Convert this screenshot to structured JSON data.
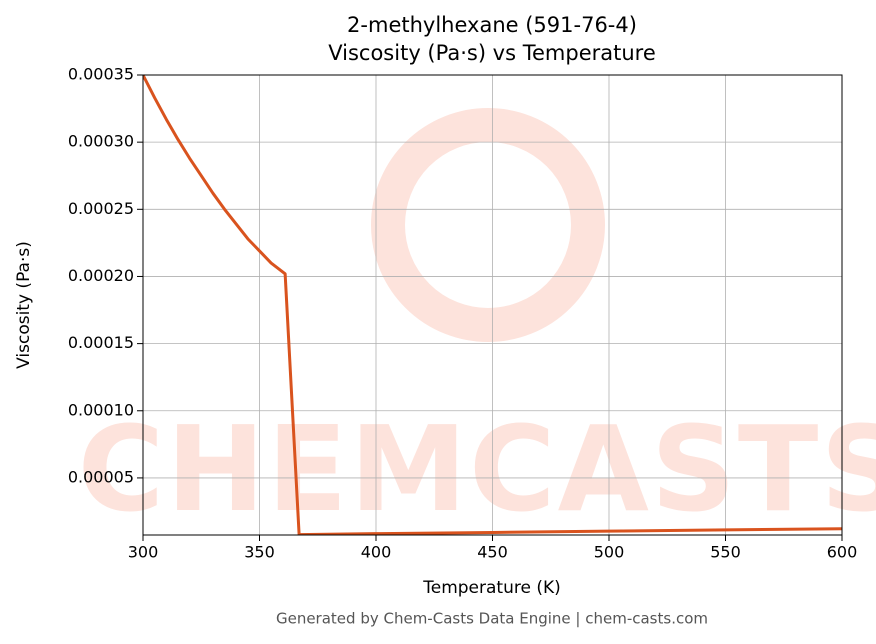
{
  "chart_data": {
    "type": "line",
    "title": "2-methylhexane (591-76-4)",
    "subtitle": "Viscosity (Pa·s) vs Temperature",
    "x_label": "Temperature (K)",
    "y_label": "Viscosity (Pa·s)",
    "footer": "Generated by Chem-Casts Data Engine | chem-casts.com",
    "watermark": "CHEMCASTS",
    "x": [
      300,
      305,
      310,
      315,
      320,
      325,
      330,
      335,
      340,
      345,
      350,
      355,
      361,
      367,
      400,
      450,
      500,
      550,
      600
    ],
    "series": [
      {
        "name": "Viscosity",
        "color": "#d9531e",
        "values": [
          0.00035,
          0.000333,
          0.000317,
          0.000302,
          0.000288,
          0.000275,
          0.000262,
          0.00025,
          0.000239,
          0.000228,
          0.000219,
          0.00021,
          0.000202,
          7.8e-06,
          8.5e-06,
          9.4e-06,
          1.04e-05,
          1.13e-05,
          1.22e-05
        ]
      }
    ],
    "xlim": [
      300,
      600
    ],
    "xticks": [
      300,
      350,
      400,
      450,
      500,
      550,
      600
    ],
    "ylim": [
      7.5e-06,
      0.00035
    ],
    "yticks": [
      {
        "value": 5e-05,
        "label": "0.00005"
      },
      {
        "value": 0.0001,
        "label": "0.00010"
      },
      {
        "value": 0.00015,
        "label": "0.00015"
      },
      {
        "value": 0.0002,
        "label": "0.00020"
      },
      {
        "value": 0.00025,
        "label": "0.00025"
      },
      {
        "value": 0.0003,
        "label": "0.00030"
      },
      {
        "value": 0.00035,
        "label": "0.00035"
      }
    ],
    "grid": true
  }
}
